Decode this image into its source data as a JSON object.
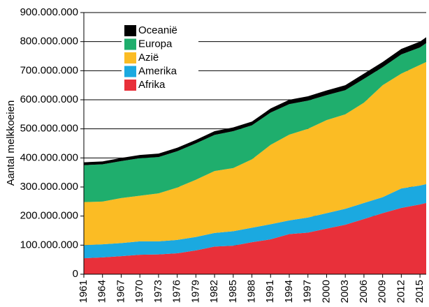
{
  "chart_data": {
    "type": "stacked_area",
    "y_label": "Aantal melkkoeien",
    "x": [
      1961,
      1964,
      1967,
      1970,
      1973,
      1976,
      1979,
      1982,
      1985,
      1988,
      1991,
      1994,
      1997,
      2000,
      2003,
      2006,
      2009,
      2012,
      2015,
      2016
    ],
    "series": [
      {
        "name": "Afrika",
        "color": "#e8303a",
        "values": [
          55000000,
          58000000,
          62000000,
          67000000,
          68000000,
          72000000,
          82000000,
          95000000,
          98000000,
          110000000,
          120000000,
          138000000,
          143000000,
          157000000,
          170000000,
          190000000,
          210000000,
          228000000,
          240000000,
          245000000
        ]
      },
      {
        "name": "Amerika",
        "color": "#1ba9e0",
        "values": [
          45000000,
          45000000,
          45000000,
          46000000,
          45000000,
          46000000,
          46000000,
          47000000,
          50000000,
          50000000,
          52000000,
          47000000,
          52000000,
          53000000,
          55000000,
          55000000,
          55000000,
          67000000,
          65000000,
          65000000
        ]
      },
      {
        "name": "Azië",
        "color": "#fbbc24",
        "values": [
          148000000,
          147000000,
          155000000,
          157000000,
          165000000,
          180000000,
          197000000,
          213000000,
          217000000,
          235000000,
          273000000,
          295000000,
          305000000,
          320000000,
          325000000,
          345000000,
          385000000,
          395000000,
          415000000,
          420000000
        ]
      },
      {
        "name": "Europa",
        "color": "#1fae6d",
        "values": [
          127000000,
          128000000,
          127000000,
          129000000,
          125000000,
          125000000,
          125000000,
          124000000,
          127000000,
          117000000,
          111000000,
          105000000,
          97000000,
          86000000,
          83000000,
          82000000,
          62000000,
          66000000,
          60000000,
          65000000
        ]
      },
      {
        "name": "Oceanië",
        "color": "#000000",
        "values": [
          10000000,
          10000000,
          11000000,
          11000000,
          12000000,
          12000000,
          12000000,
          13000000,
          13000000,
          13000000,
          14000000,
          15000000,
          15000000,
          16000000,
          17000000,
          18000000,
          18000000,
          19000000,
          20000000,
          20000000
        ]
      }
    ],
    "xlim": [
      1961,
      2016
    ],
    "xticks": [
      1961,
      1964,
      1967,
      1970,
      1973,
      1976,
      1979,
      1982,
      1985,
      1988,
      1991,
      1994,
      1997,
      2000,
      2003,
      2006,
      2009,
      2012,
      2015
    ],
    "ylim": [
      0,
      900000000
    ],
    "yticks": [
      0,
      {
        "value": 100000000,
        "label": "100.000.000"
      },
      {
        "value": 200000000,
        "label": "200.000.000"
      },
      {
        "value": 300000000,
        "label": "300.000.000"
      },
      {
        "value": 400000000,
        "label": "400.000.000"
      },
      {
        "value": 500000000,
        "label": "500.000.000"
      },
      {
        "value": 600000000,
        "label": "600.000.000"
      },
      {
        "value": 700000000,
        "label": "700.000.000"
      },
      {
        "value": 800000000,
        "label": "800.000.000"
      },
      {
        "value": 900000000,
        "label": "900.000.000"
      }
    ],
    "grid": true,
    "legend": "upper left"
  }
}
